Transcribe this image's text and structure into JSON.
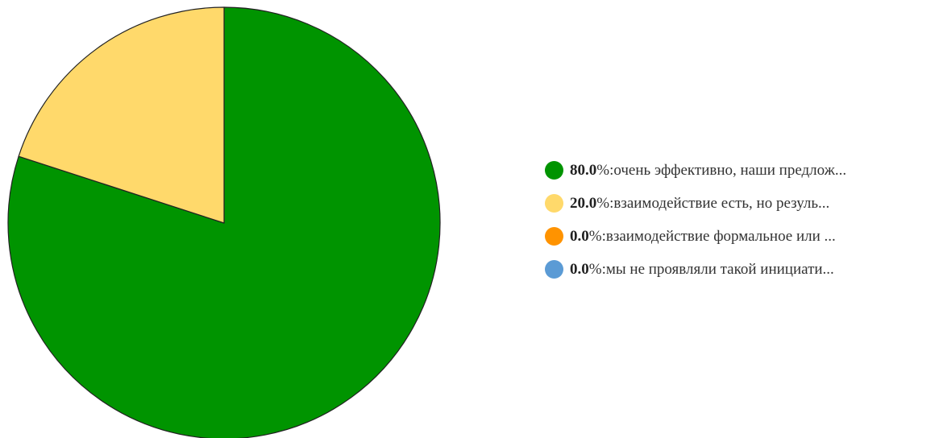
{
  "chart_data": {
    "type": "pie",
    "slices": [
      {
        "percent_label": "80.0",
        "suffix": "%: ",
        "label": "очень эффективно, наши предлож...",
        "value": 80.0,
        "color": "#009400"
      },
      {
        "percent_label": "20.0",
        "suffix": "%: ",
        "label": "взаимодействие есть, но резуль...",
        "value": 20.0,
        "color": "#ffd96b"
      },
      {
        "percent_label": "0.0",
        "suffix": "%: ",
        "label": "взаимодействие формальное или ...",
        "value": 0.0,
        "color": "#ff9300"
      },
      {
        "percent_label": "0.0",
        "suffix": "%: ",
        "label": "мы не проявляли такой инициати...",
        "value": 0.0,
        "color": "#5b9bd5"
      }
    ],
    "legend_position": "right"
  }
}
